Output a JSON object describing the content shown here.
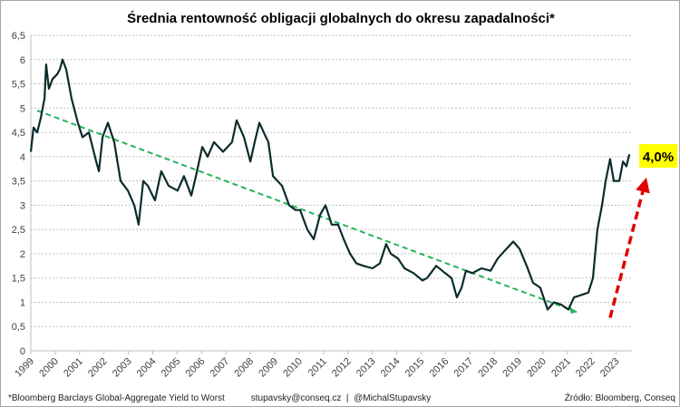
{
  "chart_data": {
    "type": "line",
    "title": "Średnia rentowność obligacji globalnych do okresu zapadalności*",
    "xlabel": "",
    "ylabel": "",
    "ylim": [
      0,
      6.5
    ],
    "xlim": [
      1999,
      2024
    ],
    "grid": true,
    "y_ticks": [
      "0",
      "0,5",
      "1",
      "1,5",
      "2",
      "2,5",
      "3",
      "3,5",
      "4",
      "4,5",
      "5",
      "5,5",
      "6",
      "6,5"
    ],
    "x_ticks": [
      "1999",
      "2000",
      "2001",
      "2002",
      "2003",
      "2004",
      "2005",
      "2006",
      "2007",
      "2008",
      "2009",
      "2010",
      "2011",
      "2012",
      "2013",
      "2014",
      "2015",
      "2016",
      "2017",
      "2018",
      "2019",
      "2020",
      "2021",
      "2022",
      "2023"
    ],
    "series": [
      {
        "color": "#0d2b2b",
        "points": [
          [
            1999.0,
            4.1
          ],
          [
            1999.11,
            4.6
          ],
          [
            1999.26,
            4.5
          ],
          [
            1999.41,
            4.8
          ],
          [
            1999.56,
            5.2
          ],
          [
            1999.63,
            5.9
          ],
          [
            1999.74,
            5.4
          ],
          [
            1999.89,
            5.6
          ],
          [
            2000.08,
            5.7
          ],
          [
            2000.19,
            5.8
          ],
          [
            2000.3,
            6.0
          ],
          [
            2000.45,
            5.8
          ],
          [
            2000.67,
            5.2
          ],
          [
            2000.93,
            4.7
          ],
          [
            2001.12,
            4.4
          ],
          [
            2001.38,
            4.5
          ],
          [
            2001.68,
            3.9
          ],
          [
            2001.79,
            3.7
          ],
          [
            2001.94,
            4.4
          ],
          [
            2002.16,
            4.7
          ],
          [
            2002.42,
            4.3
          ],
          [
            2002.68,
            3.5
          ],
          [
            2002.98,
            3.3
          ],
          [
            2003.24,
            3.0
          ],
          [
            2003.42,
            2.6
          ],
          [
            2003.61,
            3.5
          ],
          [
            2003.8,
            3.4
          ],
          [
            2004.09,
            3.1
          ],
          [
            2004.35,
            3.7
          ],
          [
            2004.65,
            3.4
          ],
          [
            2005.02,
            3.3
          ],
          [
            2005.28,
            3.6
          ],
          [
            2005.58,
            3.2
          ],
          [
            2005.77,
            3.6
          ],
          [
            2006.03,
            4.2
          ],
          [
            2006.25,
            4.0
          ],
          [
            2006.51,
            4.3
          ],
          [
            2006.88,
            4.1
          ],
          [
            2007.25,
            4.3
          ],
          [
            2007.44,
            4.75
          ],
          [
            2007.74,
            4.4
          ],
          [
            2008.0,
            3.9
          ],
          [
            2008.18,
            4.3
          ],
          [
            2008.37,
            4.7
          ],
          [
            2008.55,
            4.5
          ],
          [
            2008.74,
            4.3
          ],
          [
            2008.93,
            3.6
          ],
          [
            2009.3,
            3.4
          ],
          [
            2009.59,
            3.0
          ],
          [
            2009.85,
            2.9
          ],
          [
            2010.04,
            2.9
          ],
          [
            2010.34,
            2.5
          ],
          [
            2010.6,
            2.3
          ],
          [
            2010.86,
            2.8
          ],
          [
            2011.08,
            3.0
          ],
          [
            2011.34,
            2.6
          ],
          [
            2011.6,
            2.6
          ],
          [
            2011.83,
            2.3
          ],
          [
            2012.09,
            2.0
          ],
          [
            2012.35,
            1.8
          ],
          [
            2012.64,
            1.75
          ],
          [
            2013.01,
            1.7
          ],
          [
            2013.31,
            1.8
          ],
          [
            2013.57,
            2.2
          ],
          [
            2013.76,
            2.0
          ],
          [
            2014.06,
            1.9
          ],
          [
            2014.32,
            1.7
          ],
          [
            2014.69,
            1.6
          ],
          [
            2015.06,
            1.45
          ],
          [
            2015.25,
            1.5
          ],
          [
            2015.62,
            1.75
          ],
          [
            2015.99,
            1.6
          ],
          [
            2016.25,
            1.5
          ],
          [
            2016.47,
            1.1
          ],
          [
            2016.66,
            1.3
          ],
          [
            2016.84,
            1.65
          ],
          [
            2017.1,
            1.6
          ],
          [
            2017.48,
            1.7
          ],
          [
            2017.85,
            1.65
          ],
          [
            2018.14,
            1.9
          ],
          [
            2018.41,
            2.05
          ],
          [
            2018.78,
            2.25
          ],
          [
            2019.04,
            2.1
          ],
          [
            2019.33,
            1.75
          ],
          [
            2019.59,
            1.4
          ],
          [
            2019.89,
            1.3
          ],
          [
            2020.19,
            0.85
          ],
          [
            2020.45,
            1.0
          ],
          [
            2020.75,
            0.95
          ],
          [
            2021.04,
            0.85
          ],
          [
            2021.27,
            1.1
          ],
          [
            2021.57,
            1.15
          ],
          [
            2021.86,
            1.2
          ],
          [
            2022.05,
            1.5
          ],
          [
            2022.23,
            2.5
          ],
          [
            2022.42,
            3.0
          ],
          [
            2022.57,
            3.5
          ],
          [
            2022.75,
            3.95
          ],
          [
            2022.9,
            3.5
          ],
          [
            2023.13,
            3.5
          ],
          [
            2023.28,
            3.9
          ],
          [
            2023.42,
            3.8
          ],
          [
            2023.54,
            4.05
          ]
        ]
      }
    ],
    "trend_line": {
      "color": "#22b35a",
      "from": [
        1999.26,
        4.95
      ],
      "to": [
        2021.38,
        0.8
      ]
    },
    "arrow": {
      "color": "#e00000",
      "from": [
        2022.75,
        0.68
      ],
      "to": [
        2024.24,
        3.57
      ]
    },
    "annotation": {
      "text": "4,0%",
      "background": "#ffff00"
    }
  },
  "footer": {
    "note": "*Bloomberg Barclays Global-Aggregate Yield to Worst",
    "contact": "stupavsky@conseq.cz  |  @MichalStupavsky",
    "source": "Źródło: Bloomberg, Conseq"
  }
}
